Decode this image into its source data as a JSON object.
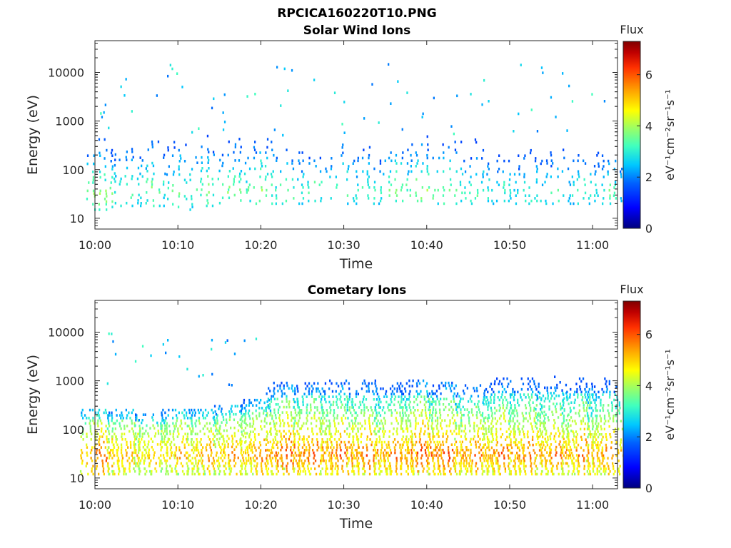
{
  "figure_title": "RPCICA160220T10.PNG",
  "colormap": [
    "#00007f",
    "#0000ff",
    "#0060ff",
    "#00c8ff",
    "#40ffbf",
    "#a0ff60",
    "#ffff00",
    "#ffa000",
    "#ff3000",
    "#c00000",
    "#7f0000"
  ],
  "chart_data": [
    {
      "type": "heatmap",
      "title": "Solar Wind Ions",
      "xlabel": "Time",
      "ylabel": "Energy (eV)",
      "x_ticks": [
        "10:00",
        "10:10",
        "10:20",
        "10:30",
        "10:40",
        "10:50",
        "11:00"
      ],
      "y_ticks": [
        "10",
        "100",
        "1000",
        "10000"
      ],
      "y_scale": "log",
      "xlim": [
        "10:00",
        "11:03"
      ],
      "ylim": [
        6,
        45000
      ],
      "colorbar": {
        "label": "Flux",
        "units": "eV⁻¹cm⁻²sr⁻¹s⁻¹",
        "ticks": [
          "0",
          "2",
          "4",
          "6"
        ],
        "range": [
          0,
          7.3
        ]
      },
      "sweeps": [
        {
          "t": 0.6,
          "e_min": 15,
          "e_max": 2500,
          "peak_e": 30,
          "peak_flux": 3.8
        },
        {
          "t": 3.8,
          "e_min": 18,
          "e_max": 1800,
          "peak_e": 35,
          "peak_flux": 3.4
        },
        {
          "t": 7.0,
          "e_min": 18,
          "e_max": 2500,
          "peak_e": 40,
          "peak_flux": 3.4
        },
        {
          "t": 10.2,
          "e_min": 15,
          "e_max": 2500,
          "peak_e": 35,
          "peak_flux": 3.5
        },
        {
          "t": 13.6,
          "e_min": 18,
          "e_max": 1200,
          "peak_e": 40,
          "peak_flux": 3.5
        },
        {
          "t": 16.8,
          "e_min": 18,
          "e_max": 2500,
          "peak_e": 35,
          "peak_flux": 3.6
        },
        {
          "t": 20.0,
          "e_min": 20,
          "e_max": 1500,
          "peak_e": 40,
          "peak_flux": 3.7
        },
        {
          "t": 23.2,
          "e_min": 20,
          "e_max": 2200,
          "peak_e": 35,
          "peak_flux": 3.4
        },
        {
          "t": 26.5,
          "e_min": 20,
          "e_max": 1500,
          "peak_e": 35,
          "peak_flux": 3.3
        },
        {
          "t": 29.8,
          "e_min": 20,
          "e_max": 1300,
          "peak_e": 40,
          "peak_flux": 3.4
        },
        {
          "t": 33.0,
          "e_min": 20,
          "e_max": 1500,
          "peak_e": 35,
          "peak_flux": 3.3
        },
        {
          "t": 36.3,
          "e_min": 20,
          "e_max": 1500,
          "peak_e": 40,
          "peak_flux": 3.5
        },
        {
          "t": 39.5,
          "e_min": 20,
          "e_max": 2200,
          "peak_e": 35,
          "peak_flux": 3.8
        },
        {
          "t": 42.8,
          "e_min": 20,
          "e_max": 1500,
          "peak_e": 35,
          "peak_flux": 3.6
        },
        {
          "t": 46.0,
          "e_min": 20,
          "e_max": 1000,
          "peak_e": 35,
          "peak_flux": 3.3
        },
        {
          "t": 49.3,
          "e_min": 20,
          "e_max": 1000,
          "peak_e": 35,
          "peak_flux": 3.0
        },
        {
          "t": 52.5,
          "e_min": 20,
          "e_max": 1000,
          "peak_e": 35,
          "peak_flux": 3.1
        },
        {
          "t": 55.8,
          "e_min": 20,
          "e_max": 800,
          "peak_e": 35,
          "peak_flux": 3.1
        },
        {
          "t": 59.0,
          "e_min": 20,
          "e_max": 900,
          "peak_e": 35,
          "peak_flux": 3.1
        },
        {
          "t": 62.0,
          "e_min": 20,
          "e_max": 1000,
          "peak_e": 35,
          "peak_flux": 3.2
        }
      ],
      "scattered_high_energy_counts": {
        "e_range": [
          500,
          15000
        ],
        "flux_range": [
          1.5,
          3.0
        ]
      }
    },
    {
      "type": "heatmap",
      "title": "Cometary Ions",
      "xlabel": "Time",
      "ylabel": "Energy (eV)",
      "x_ticks": [
        "10:00",
        "10:10",
        "10:20",
        "10:30",
        "10:40",
        "10:50",
        "11:00"
      ],
      "y_ticks": [
        "10",
        "100",
        "1000",
        "10000"
      ],
      "y_scale": "log",
      "xlim": [
        "10:00",
        "11:03"
      ],
      "ylim": [
        6,
        45000
      ],
      "colorbar": {
        "label": "Flux",
        "units": "eV⁻¹cm⁻²sr⁻¹s⁻¹",
        "ticks": [
          "0",
          "2",
          "4",
          "6"
        ],
        "range": [
          0,
          7.3
        ]
      },
      "sweeps": [
        {
          "t": 1.0,
          "e_min": 12,
          "e_max": 250,
          "peak_e": 28,
          "peak_flux": 5.6
        },
        {
          "t": 4.2,
          "e_min": 12,
          "e_max": 250,
          "peak_e": 30,
          "peak_flux": 5.2
        },
        {
          "t": 7.4,
          "e_min": 12,
          "e_max": 200,
          "peak_e": 30,
          "peak_flux": 5.0
        },
        {
          "t": 10.6,
          "e_min": 12,
          "e_max": 250,
          "peak_e": 30,
          "peak_flux": 5.2
        },
        {
          "t": 13.8,
          "e_min": 12,
          "e_max": 250,
          "peak_e": 30,
          "peak_flux": 5.3
        },
        {
          "t": 17.0,
          "e_min": 12,
          "e_max": 300,
          "peak_e": 30,
          "peak_flux": 5.3
        },
        {
          "t": 20.2,
          "e_min": 12,
          "e_max": 400,
          "peak_e": 30,
          "peak_flux": 5.5
        },
        {
          "t": 23.3,
          "e_min": 12,
          "e_max": 900,
          "peak_e": 30,
          "peak_flux": 5.8
        },
        {
          "t": 26.6,
          "e_min": 12,
          "e_max": 1000,
          "peak_e": 30,
          "peak_flux": 5.7
        },
        {
          "t": 29.9,
          "e_min": 12,
          "e_max": 1000,
          "peak_e": 30,
          "peak_flux": 5.7
        },
        {
          "t": 33.1,
          "e_min": 12,
          "e_max": 1000,
          "peak_e": 30,
          "peak_flux": 5.6
        },
        {
          "t": 36.4,
          "e_min": 12,
          "e_max": 1000,
          "peak_e": 30,
          "peak_flux": 5.5
        },
        {
          "t": 39.6,
          "e_min": 12,
          "e_max": 1000,
          "peak_e": 30,
          "peak_flux": 5.9
        },
        {
          "t": 42.8,
          "e_min": 12,
          "e_max": 900,
          "peak_e": 30,
          "peak_flux": 5.8
        },
        {
          "t": 46.1,
          "e_min": 12,
          "e_max": 800,
          "peak_e": 30,
          "peak_flux": 5.5
        },
        {
          "t": 49.4,
          "e_min": 12,
          "e_max": 1100,
          "peak_e": 30,
          "peak_flux": 5.7
        },
        {
          "t": 52.6,
          "e_min": 12,
          "e_max": 1100,
          "peak_e": 30,
          "peak_flux": 5.6
        },
        {
          "t": 55.8,
          "e_min": 12,
          "e_max": 1200,
          "peak_e": 30,
          "peak_flux": 5.5
        },
        {
          "t": 59.0,
          "e_min": 12,
          "e_max": 1100,
          "peak_e": 30,
          "peak_flux": 5.6
        },
        {
          "t": 62.0,
          "e_min": 12,
          "e_max": 1100,
          "peak_e": 30,
          "peak_flux": 5.4
        }
      ],
      "scattered_high_energy_counts": {
        "e_range": [
          800,
          10000
        ],
        "flux_range": [
          1.5,
          3.0
        ]
      }
    }
  ]
}
